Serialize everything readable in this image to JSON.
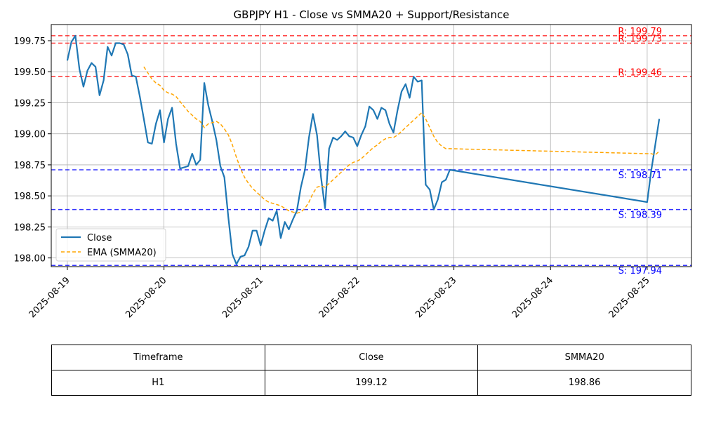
{
  "chart_data": {
    "type": "line",
    "title": "GBPJPY H1 - Close vs SMMA20 + Support/Resistance",
    "x_ticks": [
      "2025-08-19",
      "2025-08-20",
      "2025-08-21",
      "2025-08-22",
      "2025-08-23",
      "2025-08-24",
      "2025-08-25"
    ],
    "y_ticks": [
      "198.00",
      "198.25",
      "198.50",
      "198.75",
      "199.00",
      "199.25",
      "199.50",
      "199.75"
    ],
    "xlim": [
      "2025-08-18 20:00",
      "2025-08-25 11:00"
    ],
    "ylim": [
      197.93,
      199.88
    ],
    "grid": true,
    "legend_position": "lower-left",
    "legend": [
      "Close",
      "EMA (SMMA20)"
    ],
    "series": [
      {
        "name": "Close",
        "color": "#1f77b4",
        "points": [
          [
            "2025-08-19 00:00",
            199.59
          ],
          [
            "2025-08-19 01:00",
            199.74
          ],
          [
            "2025-08-19 02:00",
            199.79
          ],
          [
            "2025-08-19 03:00",
            199.52
          ],
          [
            "2025-08-19 04:00",
            199.38
          ],
          [
            "2025-08-19 05:00",
            199.51
          ],
          [
            "2025-08-19 06:00",
            199.57
          ],
          [
            "2025-08-19 07:00",
            199.54
          ],
          [
            "2025-08-19 08:00",
            199.31
          ],
          [
            "2025-08-19 09:00",
            199.43
          ],
          [
            "2025-08-19 10:00",
            199.7
          ],
          [
            "2025-08-19 11:00",
            199.63
          ],
          [
            "2025-08-19 12:00",
            199.73
          ],
          [
            "2025-08-19 13:00",
            199.73
          ],
          [
            "2025-08-19 14:00",
            199.72
          ],
          [
            "2025-08-19 15:00",
            199.64
          ],
          [
            "2025-08-19 16:00",
            199.47
          ],
          [
            "2025-08-19 17:00",
            199.46
          ],
          [
            "2025-08-19 18:00",
            199.3
          ],
          [
            "2025-08-19 19:00",
            199.12
          ],
          [
            "2025-08-19 20:00",
            198.93
          ],
          [
            "2025-08-19 21:00",
            198.92
          ],
          [
            "2025-08-19 22:00",
            199.08
          ],
          [
            "2025-08-19 23:00",
            199.19
          ],
          [
            "2025-08-20 00:00",
            198.93
          ],
          [
            "2025-08-20 01:00",
            199.12
          ],
          [
            "2025-08-20 02:00",
            199.21
          ],
          [
            "2025-08-20 03:00",
            198.92
          ],
          [
            "2025-08-20 04:00",
            198.72
          ],
          [
            "2025-08-20 05:00",
            198.73
          ],
          [
            "2025-08-20 06:00",
            198.74
          ],
          [
            "2025-08-20 07:00",
            198.84
          ],
          [
            "2025-08-20 08:00",
            198.75
          ],
          [
            "2025-08-20 09:00",
            198.79
          ],
          [
            "2025-08-20 10:00",
            199.41
          ],
          [
            "2025-08-20 11:00",
            199.23
          ],
          [
            "2025-08-20 12:00",
            199.1
          ],
          [
            "2025-08-20 13:00",
            198.95
          ],
          [
            "2025-08-20 14:00",
            198.74
          ],
          [
            "2025-08-20 15:00",
            198.65
          ],
          [
            "2025-08-20 16:00",
            198.32
          ],
          [
            "2025-08-20 17:00",
            198.03
          ],
          [
            "2025-08-20 18:00",
            197.95
          ],
          [
            "2025-08-20 19:00",
            198.01
          ],
          [
            "2025-08-20 20:00",
            198.02
          ],
          [
            "2025-08-20 21:00",
            198.09
          ],
          [
            "2025-08-20 22:00",
            198.22
          ],
          [
            "2025-08-20 23:00",
            198.22
          ],
          [
            "2025-08-21 00:00",
            198.1
          ],
          [
            "2025-08-21 01:00",
            198.22
          ],
          [
            "2025-08-21 02:00",
            198.32
          ],
          [
            "2025-08-21 03:00",
            198.3
          ],
          [
            "2025-08-21 04:00",
            198.38
          ],
          [
            "2025-08-21 05:00",
            198.16
          ],
          [
            "2025-08-21 06:00",
            198.29
          ],
          [
            "2025-08-21 07:00",
            198.23
          ],
          [
            "2025-08-21 08:00",
            198.31
          ],
          [
            "2025-08-21 09:00",
            198.38
          ],
          [
            "2025-08-21 10:00",
            198.57
          ],
          [
            "2025-08-21 11:00",
            198.71
          ],
          [
            "2025-08-21 12:00",
            198.97
          ],
          [
            "2025-08-21 13:00",
            199.16
          ],
          [
            "2025-08-21 14:00",
            198.99
          ],
          [
            "2025-08-21 15:00",
            198.65
          ],
          [
            "2025-08-21 16:00",
            198.4
          ],
          [
            "2025-08-21 17:00",
            198.88
          ],
          [
            "2025-08-21 18:00",
            198.97
          ],
          [
            "2025-08-21 19:00",
            198.95
          ],
          [
            "2025-08-21 20:00",
            198.98
          ],
          [
            "2025-08-21 21:00",
            199.02
          ],
          [
            "2025-08-21 22:00",
            198.98
          ],
          [
            "2025-08-21 23:00",
            198.97
          ],
          [
            "2025-08-22 00:00",
            198.9
          ],
          [
            "2025-08-22 01:00",
            198.99
          ],
          [
            "2025-08-22 02:00",
            199.06
          ],
          [
            "2025-08-22 03:00",
            199.22
          ],
          [
            "2025-08-22 04:00",
            199.19
          ],
          [
            "2025-08-22 05:00",
            199.12
          ],
          [
            "2025-08-22 06:00",
            199.21
          ],
          [
            "2025-08-22 07:00",
            199.19
          ],
          [
            "2025-08-22 08:00",
            199.08
          ],
          [
            "2025-08-22 09:00",
            199.01
          ],
          [
            "2025-08-22 10:00",
            199.19
          ],
          [
            "2025-08-22 11:00",
            199.34
          ],
          [
            "2025-08-22 12:00",
            199.4
          ],
          [
            "2025-08-22 13:00",
            199.29
          ],
          [
            "2025-08-22 14:00",
            199.46
          ],
          [
            "2025-08-22 15:00",
            199.42
          ],
          [
            "2025-08-22 16:00",
            199.43
          ],
          [
            "2025-08-22 17:00",
            198.59
          ],
          [
            "2025-08-22 18:00",
            198.55
          ],
          [
            "2025-08-22 19:00",
            198.39
          ],
          [
            "2025-08-22 20:00",
            198.47
          ],
          [
            "2025-08-22 21:00",
            198.61
          ],
          [
            "2025-08-22 22:00",
            198.63
          ],
          [
            "2025-08-22 23:00",
            198.71
          ],
          [
            "2025-08-25 00:00",
            198.45
          ],
          [
            "2025-08-25 01:00",
            198.7
          ],
          [
            "2025-08-25 02:00",
            198.91
          ],
          [
            "2025-08-25 03:00",
            199.12
          ]
        ]
      },
      {
        "name": "EMA (SMMA20)",
        "color": "#ffa500",
        "points": [
          [
            "2025-08-19 19:00",
            199.54
          ],
          [
            "2025-08-19 20:00",
            199.49
          ],
          [
            "2025-08-19 21:00",
            199.44
          ],
          [
            "2025-08-19 22:00",
            199.41
          ],
          [
            "2025-08-19 23:00",
            199.39
          ],
          [
            "2025-08-20 00:00",
            199.35
          ],
          [
            "2025-08-20 01:00",
            199.33
          ],
          [
            "2025-08-20 02:00",
            199.32
          ],
          [
            "2025-08-20 03:00",
            199.3
          ],
          [
            "2025-08-20 04:00",
            199.26
          ],
          [
            "2025-08-20 05:00",
            199.22
          ],
          [
            "2025-08-20 06:00",
            199.18
          ],
          [
            "2025-08-20 07:00",
            199.15
          ],
          [
            "2025-08-20 08:00",
            199.12
          ],
          [
            "2025-08-20 09:00",
            199.1
          ],
          [
            "2025-08-20 10:00",
            199.05
          ],
          [
            "2025-08-20 11:00",
            199.08
          ],
          [
            "2025-08-20 12:00",
            199.09
          ],
          [
            "2025-08-20 13:00",
            199.1
          ],
          [
            "2025-08-20 14:00",
            199.08
          ],
          [
            "2025-08-20 15:00",
            199.04
          ],
          [
            "2025-08-20 16:00",
            198.99
          ],
          [
            "2025-08-20 17:00",
            198.91
          ],
          [
            "2025-08-20 18:00",
            198.81
          ],
          [
            "2025-08-20 19:00",
            198.72
          ],
          [
            "2025-08-20 20:00",
            198.65
          ],
          [
            "2025-08-20 21:00",
            198.6
          ],
          [
            "2025-08-20 22:00",
            198.56
          ],
          [
            "2025-08-20 23:00",
            198.53
          ],
          [
            "2025-08-21 00:00",
            198.5
          ],
          [
            "2025-08-21 01:00",
            198.47
          ],
          [
            "2025-08-21 02:00",
            198.45
          ],
          [
            "2025-08-21 03:00",
            198.44
          ],
          [
            "2025-08-21 04:00",
            198.43
          ],
          [
            "2025-08-21 05:00",
            198.42
          ],
          [
            "2025-08-21 06:00",
            198.4
          ],
          [
            "2025-08-21 07:00",
            198.38
          ],
          [
            "2025-08-21 08:00",
            198.37
          ],
          [
            "2025-08-21 09:00",
            198.36
          ],
          [
            "2025-08-21 10:00",
            198.37
          ],
          [
            "2025-08-21 11:00",
            198.4
          ],
          [
            "2025-08-21 12:00",
            198.45
          ],
          [
            "2025-08-21 13:00",
            198.52
          ],
          [
            "2025-08-21 14:00",
            198.57
          ],
          [
            "2025-08-21 15:00",
            198.58
          ],
          [
            "2025-08-21 16:00",
            198.57
          ],
          [
            "2025-08-21 17:00",
            198.6
          ],
          [
            "2025-08-21 18:00",
            198.63
          ],
          [
            "2025-08-21 19:00",
            198.66
          ],
          [
            "2025-08-21 20:00",
            198.69
          ],
          [
            "2025-08-21 21:00",
            198.72
          ],
          [
            "2025-08-21 22:00",
            198.75
          ],
          [
            "2025-08-21 23:00",
            198.77
          ],
          [
            "2025-08-22 00:00",
            198.78
          ],
          [
            "2025-08-22 01:00",
            198.8
          ],
          [
            "2025-08-22 02:00",
            198.83
          ],
          [
            "2025-08-22 03:00",
            198.86
          ],
          [
            "2025-08-22 04:00",
            198.89
          ],
          [
            "2025-08-22 05:00",
            198.91
          ],
          [
            "2025-08-22 06:00",
            198.94
          ],
          [
            "2025-08-22 07:00",
            198.96
          ],
          [
            "2025-08-22 08:00",
            198.97
          ],
          [
            "2025-08-22 09:00",
            198.97
          ],
          [
            "2025-08-22 10:00",
            198.99
          ],
          [
            "2025-08-22 11:00",
            199.02
          ],
          [
            "2025-08-22 12:00",
            199.05
          ],
          [
            "2025-08-22 13:00",
            199.08
          ],
          [
            "2025-08-22 14:00",
            199.11
          ],
          [
            "2025-08-22 15:00",
            199.14
          ],
          [
            "2025-08-22 16:00",
            199.17
          ],
          [
            "2025-08-22 17:00",
            199.12
          ],
          [
            "2025-08-22 18:00",
            199.05
          ],
          [
            "2025-08-22 19:00",
            198.98
          ],
          [
            "2025-08-22 20:00",
            198.93
          ],
          [
            "2025-08-22 21:00",
            198.9
          ],
          [
            "2025-08-22 22:00",
            198.88
          ],
          [
            "2025-08-22 23:00",
            198.88
          ],
          [
            "2025-08-25 00:00",
            198.84
          ],
          [
            "2025-08-25 01:00",
            198.84
          ],
          [
            "2025-08-25 02:00",
            198.83
          ],
          [
            "2025-08-25 03:00",
            198.86
          ]
        ]
      }
    ],
    "levels": [
      {
        "kind": "resistance",
        "value": 199.79,
        "label": "R: 199.79",
        "color": "#ff0000"
      },
      {
        "kind": "resistance",
        "value": 199.73,
        "label": "R: 199.73",
        "color": "#ff0000"
      },
      {
        "kind": "resistance",
        "value": 199.46,
        "label": "R: 199.46",
        "color": "#ff0000"
      },
      {
        "kind": "support",
        "value": 198.71,
        "label": "S: 198.71",
        "color": "#0000ff"
      },
      {
        "kind": "support",
        "value": 198.39,
        "label": "S: 198.39",
        "color": "#0000ff"
      },
      {
        "kind": "support",
        "value": 197.94,
        "label": "S: 197.94",
        "color": "#0000ff"
      }
    ]
  },
  "table": {
    "headers": [
      "Timeframe",
      "Close",
      "SMMA20"
    ],
    "rows": [
      [
        "H1",
        "199.12",
        "198.86"
      ]
    ]
  }
}
